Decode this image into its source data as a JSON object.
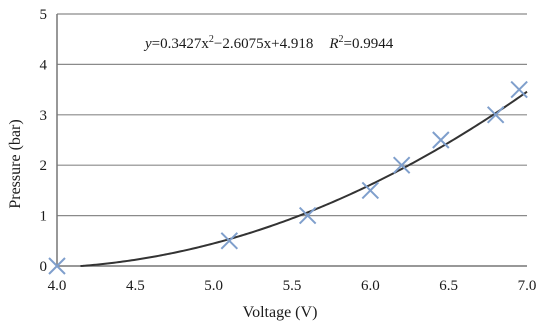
{
  "chart_data": {
    "type": "scatter",
    "title": "",
    "xlabel": "Voltage (V)",
    "ylabel": "Pressure (bar)",
    "xlim": [
      4.0,
      7.0
    ],
    "ylim": [
      0,
      5
    ],
    "xticks": [
      "4.0",
      "4.5",
      "5.0",
      "5.5",
      "6.0",
      "6.5",
      "7.0"
    ],
    "yticks": [
      "0",
      "1",
      "2",
      "3",
      "4",
      "5"
    ],
    "grid": "horizontal",
    "points": [
      {
        "x": 4.0,
        "y": 0.0
      },
      {
        "x": 5.1,
        "y": 0.5
      },
      {
        "x": 5.6,
        "y": 1.0
      },
      {
        "x": 6.0,
        "y": 1.5
      },
      {
        "x": 6.2,
        "y": 2.0
      },
      {
        "x": 6.45,
        "y": 2.5
      },
      {
        "x": 6.8,
        "y": 3.0
      },
      {
        "x": 6.95,
        "y": 3.5
      }
    ],
    "trendline": {
      "type": "polynomial",
      "coefficients": [
        0.3427,
        -2.6075,
        4.918
      ],
      "equation_y": "y",
      "equation_rhs": "=0.3427x",
      "equation_mid": "−2.6075x",
      "equation_tail": "+4.918",
      "r2_label": "R",
      "r2_value": "=0.9944",
      "sup": "2"
    },
    "colors": {
      "marker": "#7f9fcc",
      "trendline": "#333333",
      "grid": "#8a8a8a",
      "axis": "#777777"
    }
  }
}
